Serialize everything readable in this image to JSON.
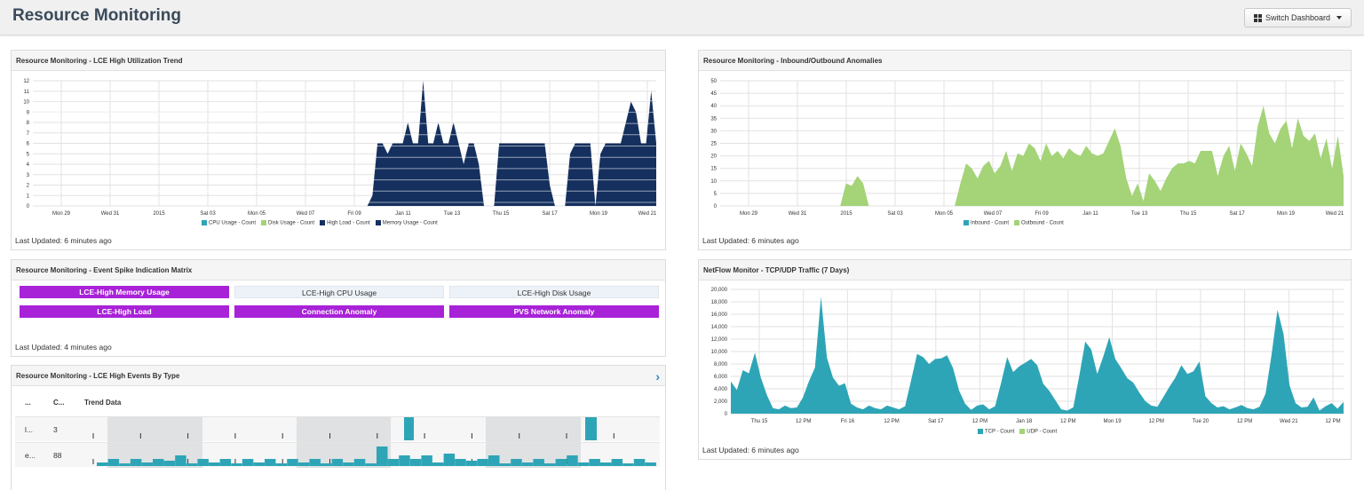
{
  "header": {
    "title": "Resource Monitoring",
    "switch_label": "Switch Dashboard"
  },
  "colors": {
    "navy": "#15305e",
    "green": "#a4d378",
    "teal": "#2ea5b6",
    "purple": "#a822d8",
    "grid": "#dddddd"
  },
  "panels": {
    "util": {
      "title": "Resource Monitoring - LCE High Utilization Trend",
      "updated": "Last Updated: 6 minutes ago",
      "legend": [
        "CPU Usage - Count",
        "Disk Usage - Count",
        "High Load - Count",
        "Memory Usage - Count"
      ],
      "legend_colors": [
        "#2ea5b6",
        "#a4d378",
        "#15305e",
        "#15305e"
      ]
    },
    "inout": {
      "title": "Resource Monitoring - Inbound/Outbound Anomalies",
      "updated": "Last Updated: 6 minutes ago",
      "legend": [
        "Inbound - Count",
        "Outbound - Count"
      ],
      "legend_colors": [
        "#2ea5b6",
        "#a4d378"
      ]
    },
    "matrix": {
      "title": "Resource Monitoring - Event Spike Indication Matrix",
      "updated": "Last Updated: 4 minutes ago",
      "cells": [
        {
          "label": "LCE-High Memory Usage",
          "active": true
        },
        {
          "label": "LCE-High CPU Usage",
          "active": false
        },
        {
          "label": "LCE-High Disk Usage",
          "active": false
        },
        {
          "label": "LCE-High Load",
          "active": true
        },
        {
          "label": "Connection Anomaly",
          "active": true
        },
        {
          "label": "PVS Network Anomaly",
          "active": true
        }
      ]
    },
    "events": {
      "title": "Resource Monitoring - LCE High Events By Type",
      "columns": [
        "...",
        "C...",
        "Trend Data"
      ],
      "rows": [
        {
          "name": "l...",
          "count": "3"
        },
        {
          "name": "e...",
          "count": "88"
        }
      ]
    },
    "netflow": {
      "title": "NetFlow Monitor - TCP/UDP Traffic (7 Days)",
      "updated": "Last Updated: 6 minutes ago",
      "legend": [
        "TCP - Count",
        "UDP - Count"
      ],
      "legend_colors": [
        "#2ea5b6",
        "#a4d378"
      ]
    }
  },
  "chart_data": [
    {
      "type": "area",
      "title": "Resource Monitoring - LCE High Utilization Trend",
      "ylim": [
        0,
        12
      ],
      "yticks": [
        "0",
        "1",
        "2",
        "3",
        "4",
        "5",
        "6",
        "7",
        "8",
        "9",
        "10",
        "11",
        "12"
      ],
      "xticks": [
        "Mon 29",
        "Wed 31",
        "2015",
        "Sat 03",
        "Mon 05",
        "Wed 07",
        "Fri 09",
        "Jan 11",
        "Tue 13",
        "Thu 15",
        "Sat 17",
        "Mon 19",
        "Wed 21"
      ],
      "series": [
        {
          "name": "Memory Usage - Count",
          "values": [
            0,
            0,
            0,
            0,
            0,
            0,
            0,
            0,
            0,
            0,
            0,
            0,
            0,
            0,
            0,
            0,
            0,
            0,
            0,
            0,
            0,
            0,
            0,
            0,
            0,
            0,
            0,
            0,
            0,
            0,
            0,
            0,
            0,
            0,
            0,
            0,
            0,
            0,
            0,
            0,
            0,
            0,
            0,
            0,
            0,
            0,
            0,
            0,
            0,
            0,
            0,
            0,
            0,
            0,
            0,
            0,
            0,
            0,
            0,
            0,
            0,
            0,
            0,
            0,
            0,
            0,
            0,
            1,
            6,
            6,
            5,
            6,
            6,
            6,
            8,
            6,
            6,
            12,
            6,
            6,
            8,
            6,
            6,
            8,
            6,
            4,
            6,
            6,
            4,
            0,
            0,
            0,
            6,
            6,
            6,
            6,
            6,
            6,
            6,
            6,
            6,
            6,
            2,
            0,
            0,
            0,
            5,
            6,
            6,
            6,
            6,
            0,
            5,
            6,
            6,
            6,
            6,
            8,
            10,
            9,
            6,
            6,
            11,
            6
          ]
        }
      ]
    },
    {
      "type": "area",
      "title": "Resource Monitoring - Inbound/Outbound Anomalies",
      "ylim": [
        0,
        50
      ],
      "yticks": [
        "0",
        "5",
        "10",
        "15",
        "20",
        "25",
        "30",
        "35",
        "40",
        "45",
        "50"
      ],
      "xticks": [
        "Mon 29",
        "Wed 31",
        "2015",
        "Sat 03",
        "Mon 05",
        "Wed 07",
        "Fri 09",
        "Jan 11",
        "Tue 13",
        "Thu 15",
        "Sat 17",
        "Mon 19",
        "Wed 21"
      ],
      "series": [
        {
          "name": "Outbound - Count",
          "values": [
            0,
            0,
            0,
            0,
            0,
            0,
            0,
            0,
            0,
            0,
            0,
            0,
            0,
            0,
            0,
            0,
            0,
            0,
            0,
            0,
            0,
            0,
            9,
            8,
            12,
            9,
            0,
            0,
            0,
            0,
            0,
            0,
            0,
            0,
            0,
            0,
            0,
            0,
            0,
            0,
            0,
            0,
            9,
            17,
            15,
            11,
            16,
            18,
            13,
            16,
            22,
            14,
            21,
            20,
            25,
            23,
            18,
            25,
            20,
            22,
            19,
            23,
            21,
            20,
            24,
            21,
            20,
            21,
            26,
            31,
            24,
            11,
            4,
            9,
            2,
            13,
            10,
            6,
            11,
            15,
            17,
            17,
            18,
            17,
            22,
            22,
            22,
            12,
            20,
            24,
            14,
            25,
            21,
            16,
            32,
            40,
            29,
            25,
            31,
            34,
            23,
            35,
            28,
            26,
            29,
            19,
            27,
            15,
            28,
            12
          ]
        }
      ]
    },
    {
      "type": "area",
      "title": "NetFlow Monitor - TCP/UDP Traffic (7 Days)",
      "ylim": [
        0,
        20000
      ],
      "yticks": [
        "0",
        "2,000",
        "4,000",
        "6,000",
        "8,000",
        "10,000",
        "12,000",
        "14,000",
        "16,000",
        "18,000",
        "20,000"
      ],
      "xticks": [
        "Thu 15",
        "12 PM",
        "Fri 16",
        "12 PM",
        "Sat 17",
        "12 PM",
        "Jan 18",
        "12 PM",
        "Mon 19",
        "12 PM",
        "Tue 20",
        "12 PM",
        "Wed 21",
        "12 PM"
      ],
      "series": [
        {
          "name": "TCP - Count",
          "values": [
            5200,
            3800,
            7000,
            6500,
            9800,
            5800,
            3000,
            900,
            700,
            1300,
            900,
            1000,
            2600,
            5200,
            7400,
            18800,
            9000,
            5800,
            4500,
            4900,
            1600,
            1000,
            700,
            1300,
            900,
            700,
            1300,
            1000,
            700,
            1200,
            5300,
            9600,
            9100,
            8000,
            8800,
            8900,
            9400,
            7300,
            3700,
            1600,
            600,
            1300,
            1500,
            700,
            1200,
            5000,
            9100,
            6700,
            7600,
            8200,
            8800,
            7800,
            4800,
            3700,
            2200,
            700,
            500,
            1000,
            6100,
            11600,
            10300,
            6400,
            9200,
            12300,
            8800,
            7300,
            5700,
            5000,
            3400,
            2000,
            1300,
            1100,
            2700,
            4300,
            5800,
            7800,
            6400,
            6800,
            8400,
            2800,
            1700,
            1000,
            1200,
            700,
            1000,
            1400,
            900,
            700,
            1100,
            3200,
            9400,
            16700,
            12800,
            4600,
            1700,
            1000,
            1100,
            2600,
            500,
            1200,
            1700,
            800,
            1900
          ]
        },
        {
          "name": "UDP - Count",
          "values": []
        }
      ]
    }
  ]
}
